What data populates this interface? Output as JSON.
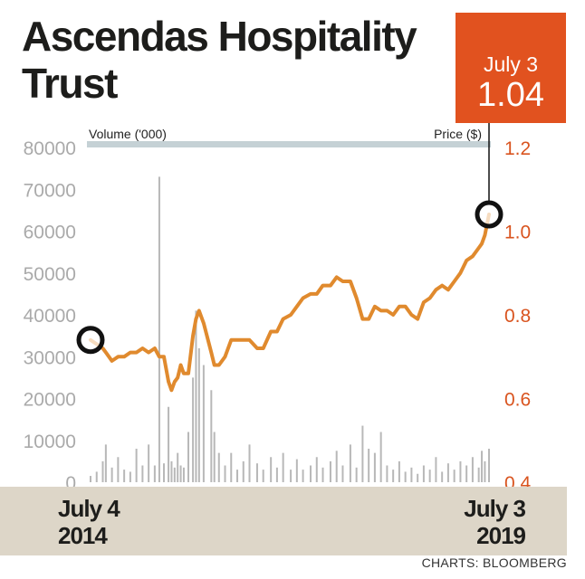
{
  "title": "Ascendas Hospitality Trust",
  "callout": {
    "date": "July 3",
    "price": "1.04"
  },
  "source": "CHARTS: BLOOMBERG",
  "colors": {
    "price_line": "#e08a2e",
    "volume_bars": "#b8b8b8",
    "callout_bg": "#e1521f",
    "right_axis": "#d9541f",
    "left_axis": "#aaaaaa",
    "header_band": "#c5d1d5",
    "date_band": "#ddd6c8",
    "marker": "#111111"
  },
  "chart_data": {
    "type": "line",
    "title": "Ascendas Hospitality Trust",
    "x_labels": [
      {
        "line1": "July 4",
        "line2": "2014"
      },
      {
        "line1": "July 3",
        "line2": "2019"
      }
    ],
    "y_left": {
      "label": "Volume ('000)",
      "ticks": [
        "80000",
        "70000",
        "60000",
        "50000",
        "40000",
        "30000",
        "20000",
        "10000",
        "0"
      ],
      "range": [
        0,
        80000
      ]
    },
    "y_right": {
      "label": "Price ($)",
      "ticks": [
        "1.2",
        "1.0",
        "0.8",
        "0.6",
        "0.4"
      ],
      "range": [
        0.4,
        1.2
      ]
    },
    "x_range": [
      "2014-07-04",
      "2019-07-03"
    ],
    "series": [
      {
        "kind": "line",
        "axis": "right",
        "points": [
          [
            "2014-07-04",
            0.74
          ],
          [
            "2014-08-01",
            0.73
          ],
          [
            "2014-08-29",
            0.72
          ],
          [
            "2014-09-12",
            0.71
          ],
          [
            "2014-10-10",
            0.69
          ],
          [
            "2014-11-07",
            0.7
          ],
          [
            "2014-12-05",
            0.7
          ],
          [
            "2015-01-02",
            0.71
          ],
          [
            "2015-01-30",
            0.71
          ],
          [
            "2015-02-27",
            0.72
          ],
          [
            "2015-03-27",
            0.71
          ],
          [
            "2015-04-24",
            0.72
          ],
          [
            "2015-05-15",
            0.7
          ],
          [
            "2015-06-05",
            0.7
          ],
          [
            "2015-06-26",
            0.64
          ],
          [
            "2015-07-10",
            0.62
          ],
          [
            "2015-07-24",
            0.64
          ],
          [
            "2015-08-07",
            0.65
          ],
          [
            "2015-08-21",
            0.68
          ],
          [
            "2015-09-04",
            0.66
          ],
          [
            "2015-09-25",
            0.66
          ],
          [
            "2015-10-16",
            0.75
          ],
          [
            "2015-10-30",
            0.79
          ],
          [
            "2015-11-13",
            0.81
          ],
          [
            "2015-12-04",
            0.78
          ],
          [
            "2016-01-08",
            0.71
          ],
          [
            "2016-01-22",
            0.68
          ],
          [
            "2016-02-12",
            0.68
          ],
          [
            "2016-03-11",
            0.7
          ],
          [
            "2016-04-08",
            0.74
          ],
          [
            "2016-05-06",
            0.74
          ],
          [
            "2016-06-03",
            0.74
          ],
          [
            "2016-07-01",
            0.74
          ],
          [
            "2016-08-05",
            0.72
          ],
          [
            "2016-09-02",
            0.72
          ],
          [
            "2016-10-07",
            0.76
          ],
          [
            "2016-11-04",
            0.76
          ],
          [
            "2016-12-02",
            0.79
          ],
          [
            "2017-01-06",
            0.8
          ],
          [
            "2017-02-03",
            0.82
          ],
          [
            "2017-03-03",
            0.84
          ],
          [
            "2017-04-07",
            0.85
          ],
          [
            "2017-05-05",
            0.85
          ],
          [
            "2017-06-02",
            0.87
          ],
          [
            "2017-07-07",
            0.87
          ],
          [
            "2017-08-04",
            0.89
          ],
          [
            "2017-09-01",
            0.88
          ],
          [
            "2017-10-06",
            0.88
          ],
          [
            "2017-11-03",
            0.84
          ],
          [
            "2017-12-01",
            0.79
          ],
          [
            "2017-12-29",
            0.79
          ],
          [
            "2018-01-26",
            0.82
          ],
          [
            "2018-02-23",
            0.81
          ],
          [
            "2018-03-23",
            0.81
          ],
          [
            "2018-04-20",
            0.8
          ],
          [
            "2018-05-18",
            0.82
          ],
          [
            "2018-06-15",
            0.82
          ],
          [
            "2018-07-13",
            0.8
          ],
          [
            "2018-08-10",
            0.79
          ],
          [
            "2018-09-07",
            0.83
          ],
          [
            "2018-10-05",
            0.84
          ],
          [
            "2018-11-02",
            0.86
          ],
          [
            "2018-11-30",
            0.87
          ],
          [
            "2018-12-28",
            0.86
          ],
          [
            "2019-01-25",
            0.88
          ],
          [
            "2019-02-22",
            0.9
          ],
          [
            "2019-03-22",
            0.93
          ],
          [
            "2019-04-19",
            0.94
          ],
          [
            "2019-05-17",
            0.96
          ],
          [
            "2019-05-31",
            0.97
          ],
          [
            "2019-06-14",
            0.99
          ],
          [
            "2019-07-03",
            1.04
          ]
        ]
      },
      {
        "kind": "bar",
        "axis": "left",
        "points": [
          [
            "2014-07-04",
            1500
          ],
          [
            "2014-08-01",
            2500
          ],
          [
            "2014-08-29",
            5000
          ],
          [
            "2014-09-12",
            9000
          ],
          [
            "2014-10-10",
            3500
          ],
          [
            "2014-11-07",
            6000
          ],
          [
            "2014-12-05",
            3000
          ],
          [
            "2015-01-02",
            2500
          ],
          [
            "2015-01-30",
            8000
          ],
          [
            "2015-02-27",
            4000
          ],
          [
            "2015-03-27",
            9000
          ],
          [
            "2015-04-24",
            4000
          ],
          [
            "2015-05-15",
            73000
          ],
          [
            "2015-06-05",
            4500
          ],
          [
            "2015-06-26",
            18000
          ],
          [
            "2015-07-10",
            5000
          ],
          [
            "2015-07-24",
            3500
          ],
          [
            "2015-08-07",
            7000
          ],
          [
            "2015-08-21",
            4000
          ],
          [
            "2015-09-04",
            3500
          ],
          [
            "2015-09-25",
            12000
          ],
          [
            "2015-10-16",
            25000
          ],
          [
            "2015-10-30",
            41000
          ],
          [
            "2015-11-13",
            32000
          ],
          [
            "2015-12-04",
            28000
          ],
          [
            "2016-01-08",
            22000
          ],
          [
            "2016-01-22",
            12000
          ],
          [
            "2016-02-12",
            7000
          ],
          [
            "2016-03-11",
            4000
          ],
          [
            "2016-04-08",
            7000
          ],
          [
            "2016-05-06",
            3000
          ],
          [
            "2016-06-03",
            5000
          ],
          [
            "2016-07-01",
            9000
          ],
          [
            "2016-08-05",
            4500
          ],
          [
            "2016-09-02",
            3000
          ],
          [
            "2016-10-07",
            6000
          ],
          [
            "2016-11-04",
            3500
          ],
          [
            "2016-12-02",
            7000
          ],
          [
            "2017-01-06",
            3000
          ],
          [
            "2017-02-03",
            5500
          ],
          [
            "2017-03-03",
            3000
          ],
          [
            "2017-04-07",
            4000
          ],
          [
            "2017-05-05",
            6000
          ],
          [
            "2017-06-02",
            3500
          ],
          [
            "2017-07-07",
            5000
          ],
          [
            "2017-08-04",
            7500
          ],
          [
            "2017-09-01",
            4000
          ],
          [
            "2017-10-06",
            9000
          ],
          [
            "2017-11-03",
            3500
          ],
          [
            "2017-12-01",
            13500
          ],
          [
            "2017-12-29",
            8000
          ],
          [
            "2018-01-26",
            7000
          ],
          [
            "2018-02-23",
            12000
          ],
          [
            "2018-03-23",
            4000
          ],
          [
            "2018-04-20",
            3000
          ],
          [
            "2018-05-18",
            5000
          ],
          [
            "2018-06-15",
            2500
          ],
          [
            "2018-07-13",
            3500
          ],
          [
            "2018-08-10",
            2000
          ],
          [
            "2018-09-07",
            4000
          ],
          [
            "2018-10-05",
            3000
          ],
          [
            "2018-11-02",
            6000
          ],
          [
            "2018-11-30",
            2500
          ],
          [
            "2018-12-28",
            4500
          ],
          [
            "2019-01-25",
            3000
          ],
          [
            "2019-02-22",
            5000
          ],
          [
            "2019-03-22",
            4000
          ],
          [
            "2019-04-19",
            6000
          ],
          [
            "2019-05-17",
            3500
          ],
          [
            "2019-05-31",
            7500
          ],
          [
            "2019-06-14",
            5000
          ],
          [
            "2019-07-03",
            8000
          ]
        ]
      }
    ],
    "annotations": [
      {
        "date": "2014-07-04",
        "price": 0.74,
        "marker": "circle"
      },
      {
        "date": "2019-07-03",
        "price": 1.04,
        "marker": "circle",
        "label": "July 3 1.04"
      }
    ],
    "grid": false
  }
}
